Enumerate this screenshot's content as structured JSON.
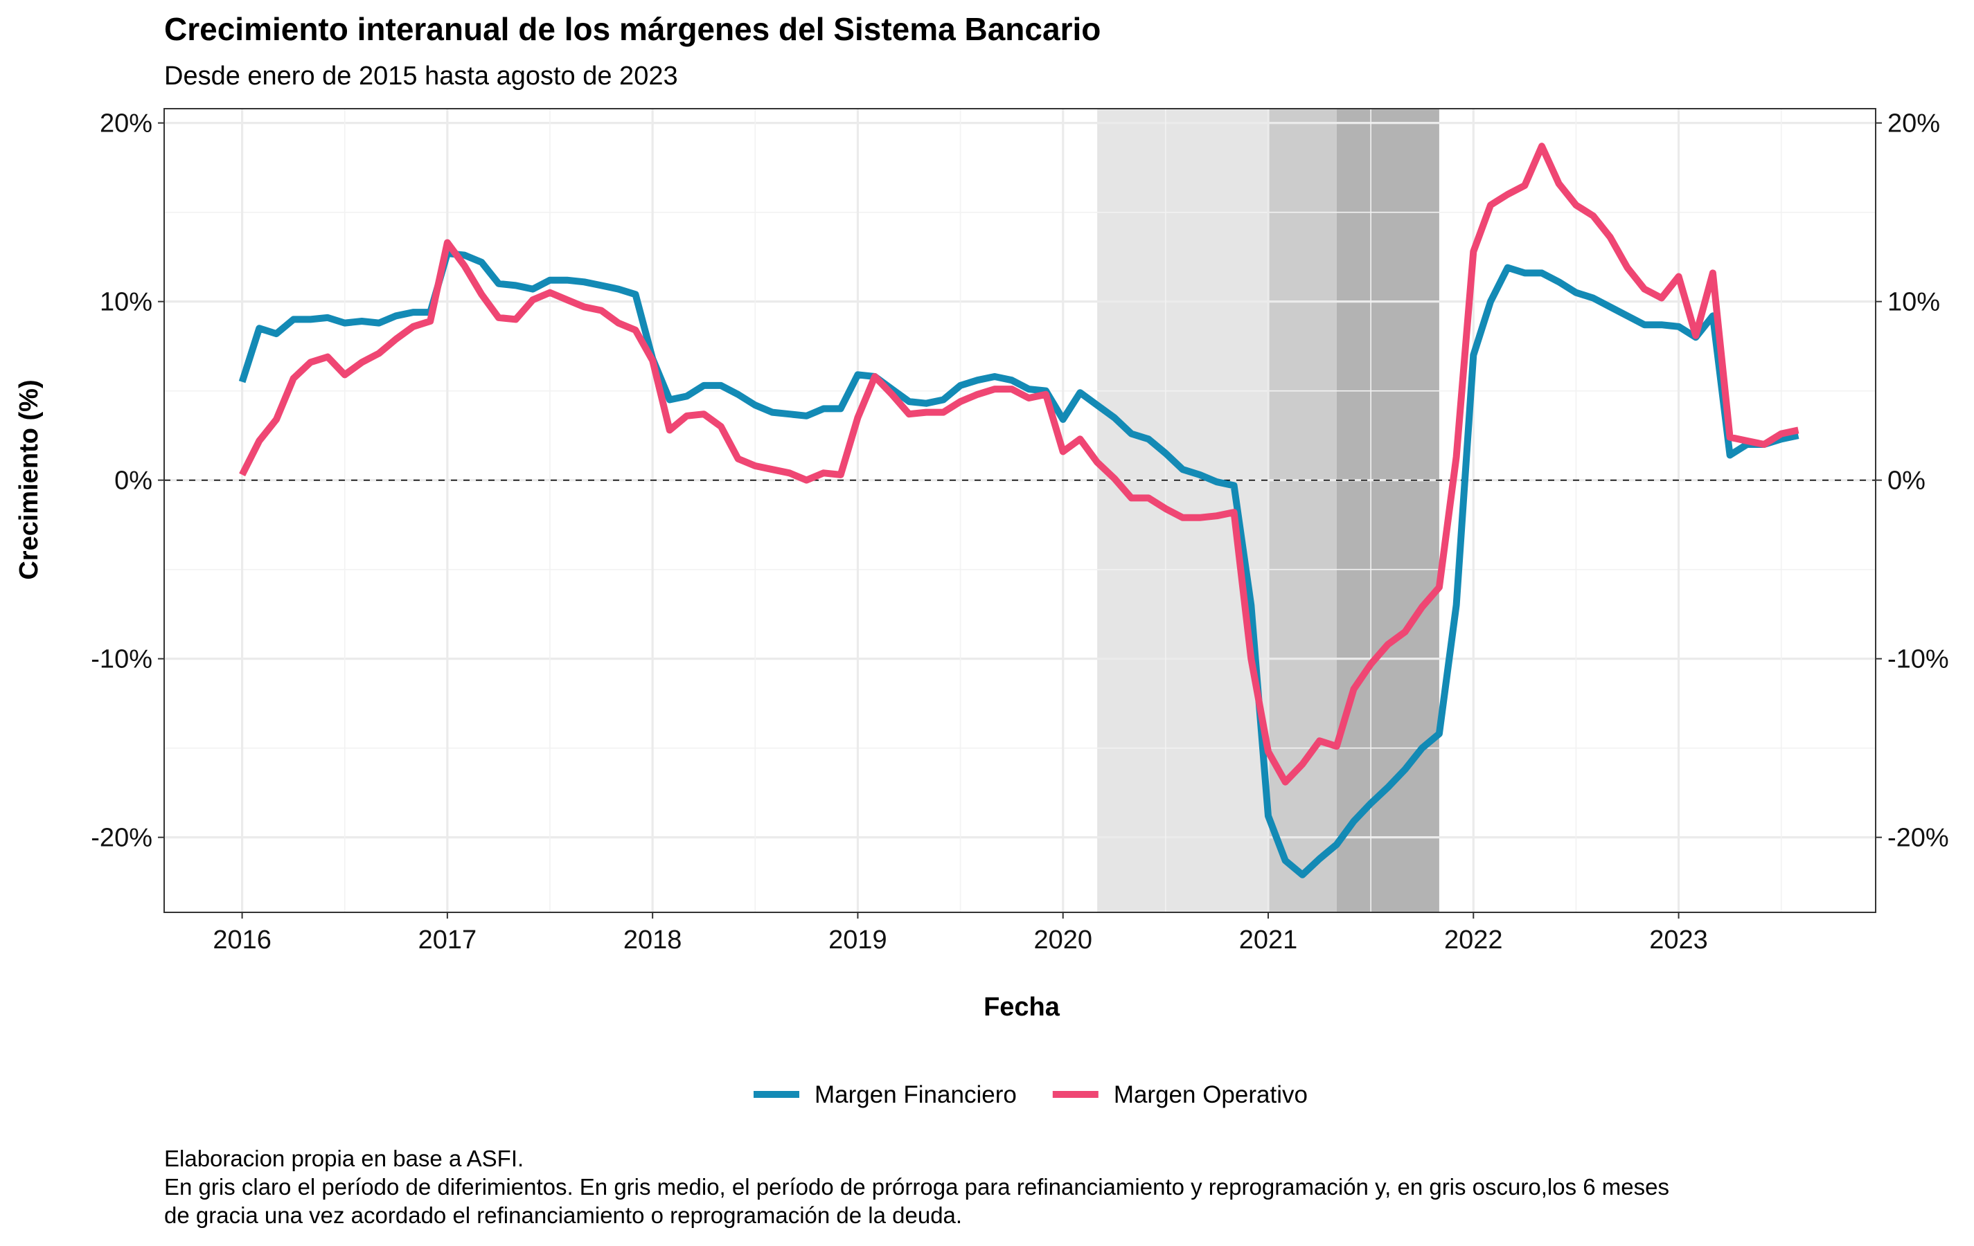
{
  "title": "Crecimiento interanual de los márgenes del Sistema Bancario",
  "subtitle": "Desde enero de 2015 hasta agosto de 2023",
  "caption": [
    "Elaboracion propia en base a ASFI.",
    "En gris claro el período de diferimientos. En gris medio, el período de prórroga para refinanciamiento y reprogramación y, en gris oscuro,los 6 meses",
    "de gracia una vez acordado el refinanciamiento o reprogramación de la deuda."
  ],
  "chart_data": {
    "type": "line",
    "xlabel": "Fecha",
    "ylabel": "Crecimiento (%)",
    "x_ticks": [
      {
        "label": "2016",
        "t": 2016.0
      },
      {
        "label": "2017",
        "t": 2017.0
      },
      {
        "label": "2018",
        "t": 2018.0
      },
      {
        "label": "2019",
        "t": 2019.0
      },
      {
        "label": "2020",
        "t": 2020.0
      },
      {
        "label": "2021",
        "t": 2021.0
      },
      {
        "label": "2022",
        "t": 2022.0
      },
      {
        "label": "2023",
        "t": 2023.0
      }
    ],
    "y_ticks": [
      {
        "label": "20%",
        "v": 20
      },
      {
        "label": "10%",
        "v": 10
      },
      {
        "label": "0%",
        "v": 0
      },
      {
        "label": "-10%",
        "v": -10
      },
      {
        "label": "-20%",
        "v": -20
      }
    ],
    "xlim": [
      2015.62,
      2023.96
    ],
    "ylim": [
      -24.2,
      20.8
    ],
    "secondary_y_axis": true,
    "reference_line": {
      "y": 0,
      "style": "dashed"
    },
    "grid": true,
    "legend_position": "bottom",
    "shaded_periods": [
      {
        "from": 2020.1667,
        "to": 2021.0,
        "color": "#e5e5e5"
      },
      {
        "from": 2021.0,
        "to": 2021.3333,
        "color": "#cccccc"
      },
      {
        "from": 2021.3333,
        "to": 2021.8333,
        "color": "#b3b3b3"
      }
    ],
    "x_dates": [
      "2016-01",
      "2016-02",
      "2016-03",
      "2016-04",
      "2016-05",
      "2016-06",
      "2016-07",
      "2016-08",
      "2016-09",
      "2016-10",
      "2016-11",
      "2016-12",
      "2017-01",
      "2017-02",
      "2017-03",
      "2017-04",
      "2017-05",
      "2017-06",
      "2017-07",
      "2017-08",
      "2017-09",
      "2017-10",
      "2017-11",
      "2017-12",
      "2018-01",
      "2018-02",
      "2018-03",
      "2018-04",
      "2018-05",
      "2018-06",
      "2018-07",
      "2018-08",
      "2018-09",
      "2018-10",
      "2018-11",
      "2018-12",
      "2019-01",
      "2019-02",
      "2019-03",
      "2019-04",
      "2019-05",
      "2019-06",
      "2019-07",
      "2019-08",
      "2019-09",
      "2019-10",
      "2019-11",
      "2019-12",
      "2020-01",
      "2020-02",
      "2020-03",
      "2020-04",
      "2020-05",
      "2020-06",
      "2020-07",
      "2020-08",
      "2020-09",
      "2020-10",
      "2020-11",
      "2020-12",
      "2021-01",
      "2021-02",
      "2021-03",
      "2021-04",
      "2021-05",
      "2021-06",
      "2021-07",
      "2021-08",
      "2021-09",
      "2021-10",
      "2021-11",
      "2021-12",
      "2022-01",
      "2022-02",
      "2022-03",
      "2022-04",
      "2022-05",
      "2022-06",
      "2022-07",
      "2022-08",
      "2022-09",
      "2022-10",
      "2022-11",
      "2022-12",
      "2023-01",
      "2023-02",
      "2023-03",
      "2023-04",
      "2023-05",
      "2023-06",
      "2023-07",
      "2023-08"
    ],
    "series": [
      {
        "name": "Margen Financiero",
        "color": "#138ab5",
        "values": [
          5.5,
          8.5,
          8.2,
          9.0,
          9.0,
          9.1,
          8.8,
          8.9,
          8.8,
          9.2,
          9.4,
          9.4,
          12.7,
          12.6,
          12.2,
          11.0,
          10.9,
          10.7,
          11.2,
          11.2,
          11.1,
          10.9,
          10.7,
          10.4,
          6.8,
          4.5,
          4.7,
          5.3,
          5.3,
          4.8,
          4.2,
          3.8,
          3.7,
          3.6,
          4.0,
          4.0,
          5.9,
          5.8,
          5.1,
          4.4,
          4.3,
          4.5,
          5.3,
          5.6,
          5.8,
          5.6,
          5.1,
          5.0,
          3.4,
          4.9,
          4.2,
          3.5,
          2.6,
          2.3,
          1.5,
          0.6,
          0.3,
          -0.1,
          -0.3,
          -7.0,
          -18.8,
          -21.3,
          -22.1,
          -21.2,
          -20.4,
          -19.1,
          -18.1,
          -17.2,
          -16.2,
          -15.0,
          -14.2,
          -7.0,
          7.0,
          10.0,
          11.9,
          11.6,
          11.6,
          11.1,
          10.5,
          10.2,
          9.7,
          9.2,
          8.7,
          8.7,
          8.6,
          8.0,
          9.2,
          1.4,
          2.0,
          2.0,
          2.3,
          2.5
        ]
      },
      {
        "name": "Margen Operativo",
        "color": "#ef4673",
        "values": [
          0.3,
          2.2,
          3.4,
          5.7,
          6.6,
          6.9,
          5.9,
          6.6,
          7.1,
          7.9,
          8.6,
          8.9,
          13.3,
          12.0,
          10.4,
          9.1,
          9.0,
          10.1,
          10.5,
          10.1,
          9.7,
          9.5,
          8.8,
          8.4,
          6.7,
          2.8,
          3.6,
          3.7,
          3.0,
          1.2,
          0.8,
          0.6,
          0.4,
          0.0,
          0.4,
          0.3,
          3.5,
          5.8,
          4.8,
          3.7,
          3.8,
          3.8,
          4.4,
          4.8,
          5.1,
          5.1,
          4.6,
          4.8,
          1.6,
          2.3,
          1.0,
          0.1,
          -1.0,
          -1.0,
          -1.6,
          -2.1,
          -2.1,
          -2.0,
          -1.8,
          -10.0,
          -15.2,
          -16.9,
          -15.9,
          -14.6,
          -14.9,
          -11.7,
          -10.3,
          -9.2,
          -8.5,
          -7.1,
          -6.0,
          1.3,
          12.8,
          15.4,
          16.0,
          16.5,
          18.7,
          16.6,
          15.4,
          14.8,
          13.6,
          11.9,
          10.7,
          10.2,
          11.4,
          8.1,
          11.6,
          2.4,
          2.2,
          2.0,
          2.6,
          2.8
        ]
      }
    ]
  }
}
